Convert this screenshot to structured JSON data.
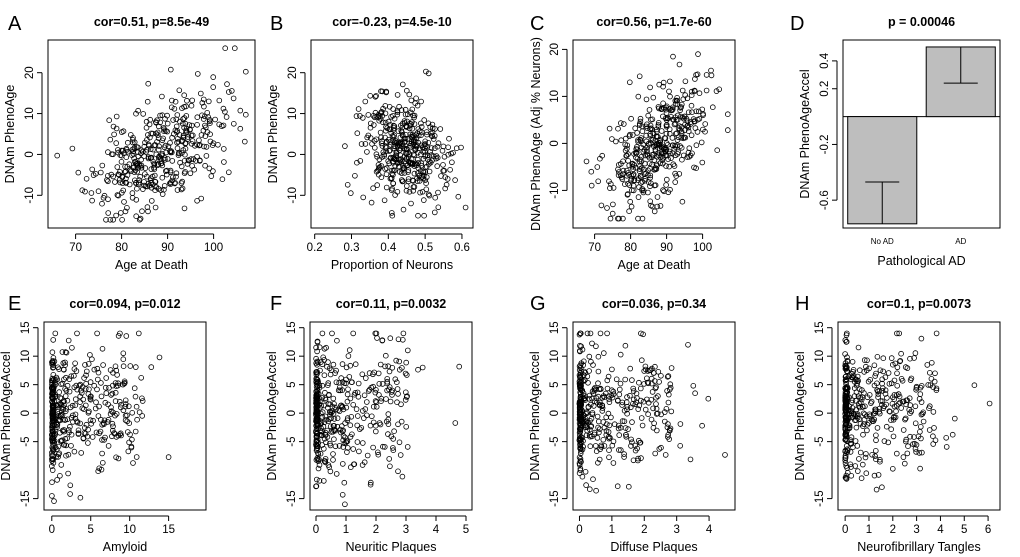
{
  "chart_data": [
    {
      "id": "A",
      "type": "scatter",
      "letter": "A",
      "title": "cor=0.51, p=8.5e-49",
      "xlabel": "Age at Death",
      "ylabel": "DNAm PhenoAge",
      "xlim": [
        64,
        109
      ],
      "ylim": [
        -18,
        28
      ],
      "xticks": [
        70,
        80,
        90,
        100
      ],
      "yticks": [
        -10,
        0,
        10,
        20
      ],
      "points": {
        "n": 420,
        "x_mean": 88,
        "x_sd": 7,
        "x_min": 66,
        "x_max": 107,
        "y_mean": 0,
        "y_sd": 7.2,
        "y_min": -16,
        "y_max": 26,
        "cor": 0.51,
        "x_skew": 0,
        "seed": 11
      }
    },
    {
      "id": "B",
      "type": "scatter",
      "letter": "B",
      "title": "cor=-0.23, p=4.5e-10",
      "xlabel": "Proportion of Neurons",
      "ylabel": "DNAm PhenoAge",
      "xlim": [
        0.19,
        0.63
      ],
      "ylim": [
        -18,
        28
      ],
      "xticks": [
        0.2,
        0.3,
        0.4,
        0.5,
        0.6
      ],
      "yticks": [
        -10,
        0,
        10,
        20
      ],
      "points": {
        "n": 420,
        "x_mean": 0.44,
        "x_sd": 0.055,
        "x_min": 0.2,
        "x_max": 0.61,
        "y_mean": 1,
        "y_sd": 6.5,
        "y_min": -15,
        "y_max": 27,
        "cor": -0.23,
        "x_skew": 0,
        "seed": 23
      }
    },
    {
      "id": "C",
      "type": "scatter",
      "letter": "C",
      "title": "cor=0.56, p=1.7e-60",
      "xlabel": "Age at Death",
      "ylabel": "DNAm PhenoAge (Adj % Neurons)",
      "xlim": [
        64,
        109
      ],
      "ylim": [
        -18,
        22
      ],
      "xticks": [
        70,
        80,
        90,
        100
      ],
      "yticks": [
        -10,
        0,
        10,
        20
      ],
      "points": {
        "n": 420,
        "x_mean": 88,
        "x_sd": 7,
        "x_min": 66,
        "x_max": 107,
        "y_mean": 0,
        "y_sd": 6.8,
        "y_min": -16,
        "y_max": 19,
        "cor": 0.56,
        "x_skew": 0,
        "seed": 37
      }
    },
    {
      "id": "D",
      "type": "bar",
      "letter": "D",
      "title": "p = 0.00046",
      "xlabel": "Pathological AD",
      "ylabel": "DNAm PhenoAgeAccel",
      "categories": [
        "No AD",
        "AD"
      ],
      "values": [
        -0.77,
        0.5
      ],
      "errors": [
        0.3,
        0.26
      ],
      "ylim": [
        -0.8,
        0.55
      ],
      "yticks": [
        -0.6,
        -0.2,
        0.2,
        0.4
      ],
      "bar_color": "#bebebe"
    },
    {
      "id": "E",
      "type": "scatter",
      "letter": "E",
      "title": "cor=0.094, p=0.012",
      "xlabel": "Amyloid",
      "ylabel": "DNAm PhenoAgeAccel",
      "xlim": [
        -1,
        19.8
      ],
      "ylim": [
        -17,
        16
      ],
      "xticks": [
        0,
        5,
        10,
        15
      ],
      "yticks": [
        -15,
        -5,
        0,
        5,
        10,
        15
      ],
      "points": {
        "n": 430,
        "x_mean": 3.2,
        "x_sd": 3.4,
        "x_min": 0,
        "x_max": 19,
        "y_mean": 0.5,
        "y_sd": 5.5,
        "y_min": -16,
        "y_max": 14,
        "cor": 0.094,
        "x_skew": 1,
        "seed": 41
      }
    },
    {
      "id": "F",
      "type": "scatter",
      "letter": "F",
      "title": "cor=0.11, p=0.0032",
      "xlabel": "Neuritic Plaques",
      "ylabel": "DNAm PhenoAgeAccel",
      "xlim": [
        -0.2,
        5.2
      ],
      "ylim": [
        -17,
        16
      ],
      "xticks": [
        0,
        1,
        2,
        3,
        4,
        5
      ],
      "yticks": [
        -15,
        -5,
        0,
        5,
        10,
        15
      ],
      "points": {
        "n": 430,
        "x_mean": 1.0,
        "x_sd": 0.9,
        "x_min": 0,
        "x_max": 5,
        "y_mean": 0.5,
        "y_sd": 5.5,
        "y_min": -16,
        "y_max": 14,
        "cor": 0.11,
        "x_skew": 1,
        "seed": 53
      }
    },
    {
      "id": "G",
      "type": "scatter",
      "letter": "G",
      "title": "cor=0.036, p=0.34",
      "xlabel": "Diffuse Plaques",
      "ylabel": "DNAm PhenoAgeAccel",
      "xlim": [
        -0.2,
        4.8
      ],
      "ylim": [
        -17,
        16
      ],
      "xticks": [
        0,
        1,
        2,
        3,
        4
      ],
      "yticks": [
        -15,
        -5,
        0,
        5,
        10,
        15
      ],
      "points": {
        "n": 430,
        "x_mean": 0.9,
        "x_sd": 0.85,
        "x_min": 0,
        "x_max": 4.6,
        "y_mean": 0.5,
        "y_sd": 5.5,
        "y_min": -16,
        "y_max": 14,
        "cor": 0.036,
        "x_skew": 1,
        "seed": 67
      }
    },
    {
      "id": "H",
      "type": "scatter",
      "letter": "H",
      "title": "cor=0.1, p=0.0073",
      "xlabel": "Neurofibrillary Tangles",
      "ylabel": "DNAm PhenoAgeAccel",
      "xlim": [
        -0.3,
        6.5
      ],
      "ylim": [
        -17,
        16
      ],
      "xticks": [
        0,
        1,
        2,
        3,
        4,
        5,
        6
      ],
      "yticks": [
        -15,
        -5,
        0,
        5,
        10,
        15
      ],
      "points": {
        "n": 430,
        "x_mean": 0.7,
        "x_sd": 0.8,
        "x_min": 0,
        "x_max": 6.2,
        "y_mean": 0.5,
        "y_sd": 5.5,
        "y_min": -16,
        "y_max": 14,
        "cor": 0.1,
        "x_skew": 1,
        "seed": 79
      }
    }
  ]
}
